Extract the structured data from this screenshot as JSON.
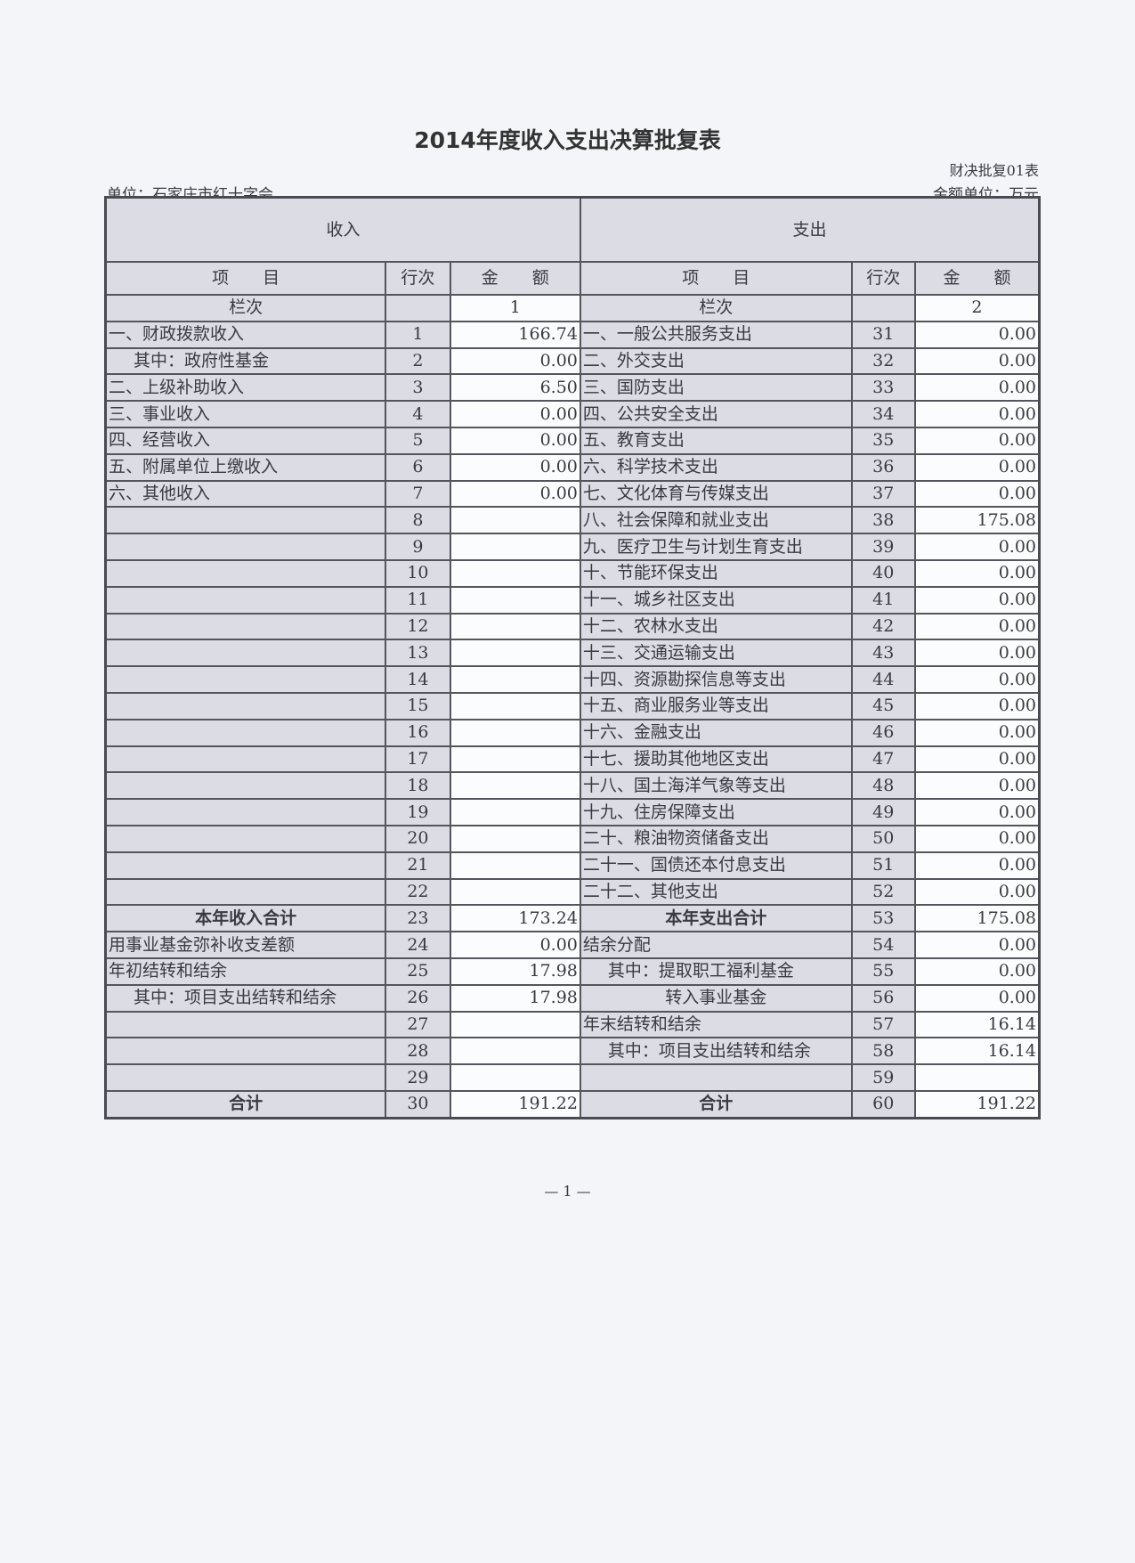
{
  "title": "2014年度收入支出决算批复表",
  "form_no": "财决批复01表",
  "unit": "单位：石家庄市红十字会",
  "money_unit": "金额单位：万元",
  "header": {
    "income": "收入",
    "expense": "支出",
    "item": "项　　目",
    "row_no": "行次",
    "amount": "金　　额",
    "col_label": "栏次",
    "col_income": "1",
    "col_expense": "2"
  },
  "rows": [
    {
      "l": "一、财政拨款收入",
      "ln": "1",
      "la": "166.74",
      "r": "一、一般公共服务支出",
      "rn": "31",
      "ra": "0.00"
    },
    {
      "l": "其中：政府性基金",
      "li": 1,
      "ln": "2",
      "la": "0.00",
      "r": "二、外交支出",
      "rn": "32",
      "ra": "0.00"
    },
    {
      "l": "二、上级补助收入",
      "ln": "3",
      "la": "6.50",
      "r": "三、国防支出",
      "rn": "33",
      "ra": "0.00"
    },
    {
      "l": "三、事业收入",
      "ln": "4",
      "la": "0.00",
      "r": "四、公共安全支出",
      "rn": "34",
      "ra": "0.00"
    },
    {
      "l": "四、经营收入",
      "ln": "5",
      "la": "0.00",
      "r": "五、教育支出",
      "rn": "35",
      "ra": "0.00"
    },
    {
      "l": "五、附属单位上缴收入",
      "ln": "6",
      "la": "0.00",
      "r": "六、科学技术支出",
      "rn": "36",
      "ra": "0.00"
    },
    {
      "l": "六、其他收入",
      "ln": "7",
      "la": "0.00",
      "r": "七、文化体育与传媒支出",
      "rn": "37",
      "ra": "0.00"
    },
    {
      "l": "",
      "ln": "8",
      "la": "",
      "r": "八、社会保障和就业支出",
      "rn": "38",
      "ra": "175.08"
    },
    {
      "l": "",
      "ln": "9",
      "la": "",
      "r": "九、医疗卫生与计划生育支出",
      "rn": "39",
      "ra": "0.00"
    },
    {
      "l": "",
      "ln": "10",
      "la": "",
      "r": "十、节能环保支出",
      "rn": "40",
      "ra": "0.00"
    },
    {
      "l": "",
      "ln": "11",
      "la": "",
      "r": "十一、城乡社区支出",
      "rn": "41",
      "ra": "0.00"
    },
    {
      "l": "",
      "ln": "12",
      "la": "",
      "r": "十二、农林水支出",
      "rn": "42",
      "ra": "0.00"
    },
    {
      "l": "",
      "ln": "13",
      "la": "",
      "r": "十三、交通运输支出",
      "rn": "43",
      "ra": "0.00"
    },
    {
      "l": "",
      "ln": "14",
      "la": "",
      "r": "十四、资源勘探信息等支出",
      "rn": "44",
      "ra": "0.00"
    },
    {
      "l": "",
      "ln": "15",
      "la": "",
      "r": "十五、商业服务业等支出",
      "rn": "45",
      "ra": "0.00"
    },
    {
      "l": "",
      "ln": "16",
      "la": "",
      "r": "十六、金融支出",
      "rn": "46",
      "ra": "0.00"
    },
    {
      "l": "",
      "ln": "17",
      "la": "",
      "r": "十七、援助其他地区支出",
      "rn": "47",
      "ra": "0.00"
    },
    {
      "l": "",
      "ln": "18",
      "la": "",
      "r": "十八、国土海洋气象等支出",
      "rn": "48",
      "ra": "0.00"
    },
    {
      "l": "",
      "ln": "19",
      "la": "",
      "r": "十九、住房保障支出",
      "rn": "49",
      "ra": "0.00"
    },
    {
      "l": "",
      "ln": "20",
      "la": "",
      "r": "二十、粮油物资储备支出",
      "rn": "50",
      "ra": "0.00"
    },
    {
      "l": "",
      "ln": "21",
      "la": "",
      "r": "二十一、国债还本付息支出",
      "rn": "51",
      "ra": "0.00"
    },
    {
      "l": "",
      "ln": "22",
      "la": "",
      "r": "二十二、其他支出",
      "rn": "52",
      "ra": "0.00"
    },
    {
      "l": "本年收入合计",
      "lb": 1,
      "ln": "23",
      "la": "173.24",
      "r": "本年支出合计",
      "rb": 1,
      "rn": "53",
      "ra": "175.08"
    },
    {
      "l": "用事业基金弥补收支差额",
      "ln": "24",
      "la": "0.00",
      "r": "结余分配",
      "rn": "54",
      "ra": "0.00"
    },
    {
      "l": "年初结转和结余",
      "ln": "25",
      "la": "17.98",
      "r": "其中：提取职工福利基金",
      "ri": 1,
      "rn": "55",
      "ra": "0.00"
    },
    {
      "l": "其中：项目支出结转和结余",
      "li": 1,
      "ln": "26",
      "la": "17.98",
      "r": "转入事业基金",
      "rc": 1,
      "rn": "56",
      "ra": "0.00"
    },
    {
      "l": "",
      "ln": "27",
      "la": "",
      "r": "年末结转和结余",
      "rn": "57",
      "ra": "16.14"
    },
    {
      "l": "",
      "ln": "28",
      "la": "",
      "r": "其中：项目支出结转和结余",
      "ri": 1,
      "rn": "58",
      "ra": "16.14"
    },
    {
      "l": "",
      "ln": "29",
      "la": "",
      "r": "",
      "rn": "59",
      "ra": ""
    },
    {
      "l": "合计",
      "lb": 1,
      "ln": "30",
      "la": "191.22",
      "r": "合计",
      "rb": 1,
      "rn": "60",
      "ra": "191.22"
    }
  ],
  "page_number": "— 1 —"
}
